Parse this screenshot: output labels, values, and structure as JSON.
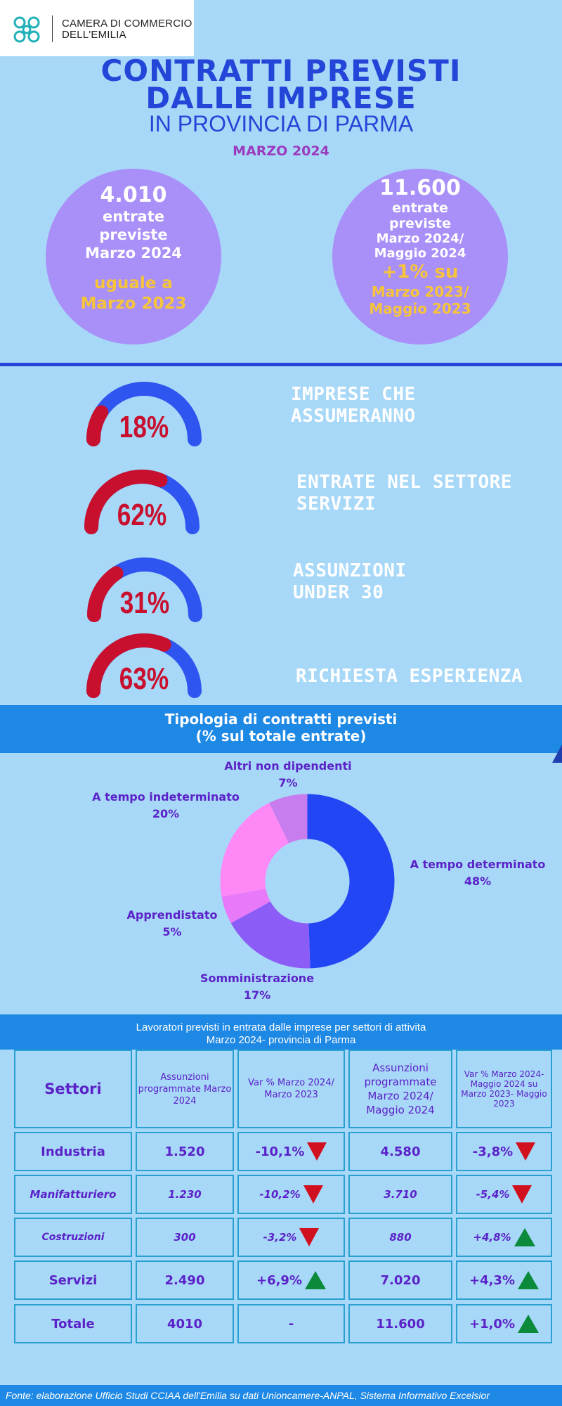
{
  "logo": {
    "line1": "CAMERA DI COMMERCIO",
    "line2": "DELL'EMILIA"
  },
  "title": {
    "line1": "CONTRATTI PREVISTI",
    "line2": "DALLE IMPRESE",
    "line3": "IN PROVINCIA DI PARMA",
    "period": "MARZO  2024"
  },
  "bubbles": {
    "left": {
      "value": "4.010",
      "l1": "entrate",
      "l2": "previste",
      "l3": "Marzo 2024",
      "y1": "uguale a",
      "y2": "Marzo 2023"
    },
    "right": {
      "value": "11.600",
      "l1": "entrate",
      "l2": "previste",
      "l3": "Marzo 2024/",
      "l4": "Maggio 2024",
      "y0": "+1% su",
      "y1": "Marzo 2023/",
      "y2": "Maggio 2023"
    }
  },
  "gauges": [
    {
      "value": "18%",
      "percent": 18,
      "label1": "IMPRESE CHE",
      "label2": "ASSUMERANNO"
    },
    {
      "value": "62%",
      "percent": 62,
      "label1": "ENTRATE NEL SETTORE",
      "label2": "SERVIZI"
    },
    {
      "value": "31%",
      "percent": 31,
      "label1": "ASSUNZIONI",
      "label2": "UNDER 30"
    },
    {
      "value": "63%",
      "percent": 63,
      "label1": "RICHIESTA ESPERIENZA",
      "label2": ""
    }
  ],
  "colors": {
    "gauge_fill": "#c8102e",
    "gauge_rest": "#2f55f0",
    "band": "#1e88e5",
    "bubble": "#a98ff8"
  },
  "contracts": {
    "title1": "Tipologia di contratti previsti",
    "title2": "(% sul totale entrate)"
  },
  "chart_data": {
    "type": "pie",
    "categories": [
      "A tempo determinato",
      "Somministrazione",
      "Apprendistato",
      "A tempo indeterminato",
      "Altri non dipendenti"
    ],
    "values": [
      48,
      17,
      5,
      20,
      7
    ],
    "labels": [
      "48%",
      "17%",
      "5%",
      "20%",
      "7%"
    ],
    "colors": [
      "#2346f5",
      "#8b5cf6",
      "#e879f9",
      "#ff88f7",
      "#c77ded"
    ]
  },
  "table": {
    "title1": "Lavoratori previsti in entrata dalle imprese per settori di attivita",
    "title2": "Marzo 2024- provincia di Parma",
    "headers": {
      "settori": "Settori",
      "ass1": "Assunzioni programmate Marzo 2024",
      "var1": "Var % Marzo 2024/ Marzo 2023",
      "ass2": "Assunzioni programmate Marzo 2024/ Maggio 2024",
      "var2": "Var % Marzo 2024- Maggio 2024 su Marzo 2023- Maggio 2023"
    },
    "rows": [
      {
        "sector": "Industria",
        "a1": "1.520",
        "v1": "-10,1%",
        "a2": "4.580",
        "v2": "-3,8%"
      },
      {
        "sector": "Manifatturiero",
        "a1": "1.230",
        "v1": "-10,2%",
        "a2": "3.710",
        "v2": "-5,4%"
      },
      {
        "sector": "Costruzioni",
        "a1": "300",
        "v1": "-3,2%",
        "a2": "880",
        "v2": "+4,8%"
      },
      {
        "sector": "Servizi",
        "a1": "2.490",
        "v1": "+6,9%",
        "a2": "7.020",
        "v2": "+4,3%"
      },
      {
        "sector": "Totale",
        "a1": "4010",
        "v1": "-",
        "a2": "11.600",
        "v2": "+1,0%"
      }
    ]
  },
  "footer": "Fonte: elaborazione Ufficio Studi CCIAA dell'Emilia su dati Unioncamere-ANPAL, Sistema Informativo Excelsior"
}
